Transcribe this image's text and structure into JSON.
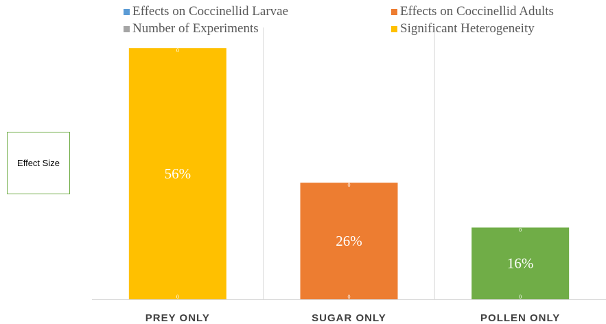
{
  "chart_data": {
    "type": "bar",
    "title": "",
    "ylabel": "Effect Size",
    "xlabel": "",
    "ylim": [
      0,
      60
    ],
    "grid": "vertical separators",
    "legend_placement": "top",
    "legend": [
      {
        "label": "Effects on Coccinellid Larvae",
        "color": "#5b9bd5"
      },
      {
        "label": "Effects on Coccinellid Adults",
        "color": "#ed7d31"
      },
      {
        "label": "Number of Experiments",
        "color": "#a5a5a5"
      },
      {
        "label": "Significant Heterogeneity",
        "color": "#ffc000"
      }
    ],
    "categories": [
      "PREY ONLY",
      "SUGAR ONLY",
      "POLLEN ONLY"
    ],
    "values": [
      56,
      26,
      16
    ],
    "data_labels": [
      "56%",
      "26%",
      "16%"
    ],
    "bar_colors": [
      "#ffc000",
      "#ed7d31",
      "#70ad47"
    ],
    "small_labels": [
      "0",
      "0"
    ]
  }
}
